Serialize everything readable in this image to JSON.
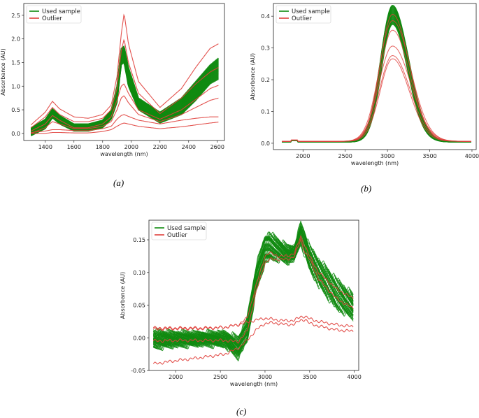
{
  "colors": {
    "used": "#0f8a0f",
    "outlier": "#e0403c"
  },
  "chart_data": [
    {
      "panel": "(a)",
      "type": "line",
      "xlabel": "wavelength (nm)",
      "ylabel": "Absorbance (AU)",
      "xlim": [
        1250,
        2650
      ],
      "ylim": [
        -0.15,
        2.75
      ],
      "xticks": [
        1400,
        1600,
        1800,
        2000,
        2200,
        2400,
        2600
      ],
      "yticks": [
        0.0,
        0.5,
        1.0,
        1.5,
        2.0,
        2.5
      ],
      "legend": {
        "position": "top-left",
        "entries": [
          "Used sample",
          "Outlier"
        ]
      },
      "series": [
        {
          "name": "Used sample",
          "x": [
            1300,
            1400,
            1450,
            1500,
            1600,
            1700,
            1800,
            1860,
            1900,
            1930,
            1950,
            1980,
            2050,
            2200,
            2350,
            2450,
            2550,
            2610
          ],
          "y_low": [
            -0.05,
            0.1,
            0.33,
            0.2,
            0.05,
            0.05,
            0.12,
            0.3,
            0.65,
            1.45,
            1.5,
            1.0,
            0.5,
            0.22,
            0.4,
            0.7,
            1.05,
            1.15
          ],
          "y_high": [
            0.12,
            0.3,
            0.52,
            0.38,
            0.2,
            0.2,
            0.28,
            0.5,
            1.0,
            1.8,
            1.85,
            1.4,
            0.75,
            0.45,
            0.75,
            1.1,
            1.45,
            1.6
          ]
        },
        {
          "name": "Outlier",
          "x": [
            1300,
            1400,
            1450,
            1500,
            1600,
            1700,
            1800,
            1860,
            1900,
            1930,
            1950,
            1980,
            2050,
            2200,
            2350,
            2450,
            2550,
            2610
          ],
          "y": [
            0.18,
            0.45,
            0.68,
            0.52,
            0.35,
            0.32,
            0.4,
            0.6,
            1.2,
            2.1,
            2.55,
            1.9,
            1.1,
            0.55,
            0.95,
            1.4,
            1.8,
            1.9
          ]
        },
        {
          "name": "Outlier",
          "x": [
            1300,
            1400,
            1450,
            1500,
            1600,
            1700,
            1800,
            1860,
            1900,
            1930,
            1950,
            1980,
            2050,
            2200,
            2350,
            2450,
            2550,
            2610
          ],
          "y": [
            0.12,
            0.35,
            0.55,
            0.4,
            0.25,
            0.25,
            0.32,
            0.5,
            0.95,
            1.75,
            2.0,
            1.5,
            0.85,
            0.42,
            0.75,
            1.05,
            1.3,
            1.4
          ]
        },
        {
          "name": "Outlier",
          "x": [
            1300,
            1400,
            1450,
            1500,
            1600,
            1700,
            1800,
            1860,
            1900,
            1930,
            1950,
            1980,
            2050,
            2200,
            2350,
            2450,
            2550,
            2610
          ],
          "y": [
            0.05,
            0.2,
            0.38,
            0.28,
            0.12,
            0.12,
            0.2,
            0.35,
            0.7,
            1.0,
            1.05,
            0.85,
            0.5,
            0.3,
            0.5,
            0.72,
            0.95,
            1.02
          ]
        },
        {
          "name": "Outlier",
          "x": [
            1300,
            1400,
            1450,
            1500,
            1600,
            1700,
            1800,
            1860,
            1900,
            1930,
            1950,
            1980,
            2050,
            2200,
            2350,
            2450,
            2550,
            2610
          ],
          "y": [
            0.0,
            0.12,
            0.25,
            0.2,
            0.1,
            0.1,
            0.15,
            0.25,
            0.5,
            0.75,
            0.8,
            0.65,
            0.4,
            0.25,
            0.4,
            0.55,
            0.7,
            0.75
          ]
        },
        {
          "name": "Outlier",
          "x": [
            1300,
            1400,
            1450,
            1500,
            1600,
            1700,
            1800,
            1860,
            1900,
            1930,
            1950,
            1980,
            2050,
            2200,
            2350,
            2450,
            2550,
            2610
          ],
          "y": [
            0.02,
            0.05,
            0.08,
            0.08,
            0.06,
            0.06,
            0.1,
            0.15,
            0.3,
            0.38,
            0.4,
            0.36,
            0.28,
            0.2,
            0.28,
            0.32,
            0.35,
            0.35
          ]
        },
        {
          "name": "Outlier",
          "x": [
            1300,
            1400,
            1450,
            1500,
            1600,
            1700,
            1800,
            1860,
            1900,
            1930,
            1950,
            1980,
            2050,
            2200,
            2350,
            2450,
            2550,
            2610
          ],
          "y": [
            0.0,
            0.0,
            0.02,
            0.02,
            0.01,
            0.01,
            0.04,
            0.08,
            0.15,
            0.2,
            0.22,
            0.2,
            0.15,
            0.1,
            0.14,
            0.18,
            0.22,
            0.24
          ]
        }
      ]
    },
    {
      "panel": "(b)",
      "type": "line",
      "xlabel": "wavelength (nm)",
      "ylabel": "Absorbance (AU)",
      "xlim": [
        1650,
        4050
      ],
      "ylim": [
        -0.02,
        0.44
      ],
      "xticks": [
        2000,
        2500,
        3000,
        3500,
        4000
      ],
      "yticks": [
        0.0,
        0.1,
        0.2,
        0.3,
        0.4
      ],
      "legend": {
        "position": "top-left",
        "entries": [
          "Used sample",
          "Outlier"
        ]
      },
      "series": [
        {
          "name": "Used sample",
          "peaks": [
            0.37,
            0.39,
            0.4,
            0.41,
            0.42,
            0.43
          ],
          "center": 3060,
          "width": 140,
          "baseline": 0.004
        },
        {
          "name": "Outlier",
          "peaks": [
            0.26,
            0.27,
            0.3,
            0.35,
            0.38,
            0.4
          ],
          "center": 3060,
          "width": 155,
          "baseline": 0.006
        }
      ]
    },
    {
      "panel": "(c)",
      "type": "line",
      "xlabel": "wavelength (nm)",
      "ylabel": "Absorbance (AU)",
      "xlim": [
        1700,
        4050
      ],
      "ylim": [
        -0.05,
        0.18
      ],
      "xticks": [
        2000,
        2500,
        3000,
        3500,
        4000
      ],
      "yticks": [
        -0.05,
        0.0,
        0.05,
        0.1,
        0.15
      ],
      "legend": {
        "position": "top-left",
        "entries": [
          "Used sample",
          "Outlier"
        ]
      },
      "series": [
        {
          "name": "Used sample",
          "x": [
            1750,
            2000,
            2300,
            2550,
            2700,
            2800,
            2900,
            3000,
            3050,
            3150,
            3250,
            3330,
            3400,
            3450,
            3500,
            3600,
            3800,
            3990
          ],
          "y_low": [
            -0.015,
            -0.012,
            -0.01,
            -0.012,
            -0.03,
            -0.005,
            0.07,
            0.115,
            0.12,
            0.12,
            0.115,
            0.12,
            0.145,
            0.125,
            0.105,
            0.08,
            0.045,
            0.03
          ],
          "y_high": [
            0.01,
            0.008,
            0.007,
            0.008,
            0.0,
            0.03,
            0.11,
            0.155,
            0.16,
            0.15,
            0.14,
            0.14,
            0.175,
            0.16,
            0.14,
            0.12,
            0.09,
            0.065
          ]
        },
        {
          "name": "Outlier",
          "x": [
            1750,
            2000,
            2300,
            2550,
            2700,
            2800,
            2900,
            3000,
            3050,
            3150,
            3250,
            3330,
            3400,
            3450,
            3500,
            3600,
            3800,
            3990
          ],
          "y": [
            0.015,
            0.015,
            0.015,
            0.016,
            0.02,
            0.03,
            0.08,
            0.125,
            0.13,
            0.125,
            0.125,
            0.13,
            0.155,
            0.14,
            0.125,
            0.1,
            0.075,
            0.06
          ]
        },
        {
          "name": "Outlier",
          "x": [
            1750,
            2000,
            2300,
            2550,
            2700,
            2800,
            2900,
            3000,
            3050,
            3150,
            3250,
            3330,
            3400,
            3450,
            3500,
            3600,
            3800,
            3990
          ],
          "y": [
            -0.005,
            -0.004,
            -0.004,
            -0.004,
            -0.006,
            0.01,
            0.07,
            0.115,
            0.12,
            0.12,
            0.12,
            0.125,
            0.15,
            0.13,
            0.12,
            0.09,
            0.06,
            0.045
          ]
        },
        {
          "name": "Outlier",
          "x": [
            1750,
            2000,
            2300,
            2550,
            2700,
            2800,
            2900,
            3000,
            3050,
            3150,
            3250,
            3330,
            3400,
            3450,
            3500,
            3600,
            3800,
            3990
          ],
          "y": [
            0.013,
            0.014,
            0.014,
            0.016,
            0.02,
            0.024,
            0.027,
            0.03,
            0.029,
            0.027,
            0.026,
            0.027,
            0.032,
            0.033,
            0.029,
            0.025,
            0.02,
            0.017
          ]
        },
        {
          "name": "Outlier",
          "x": [
            1750,
            2000,
            2300,
            2550,
            2700,
            2800,
            2900,
            3000,
            3050,
            3150,
            3250,
            3330,
            3400,
            3450,
            3500,
            3600,
            3800,
            3990
          ],
          "y": [
            -0.04,
            -0.035,
            -0.03,
            -0.025,
            -0.016,
            -0.004,
            0.012,
            0.022,
            0.023,
            0.022,
            0.02,
            0.021,
            0.027,
            0.028,
            0.022,
            0.018,
            0.012,
            0.01
          ]
        }
      ]
    }
  ]
}
